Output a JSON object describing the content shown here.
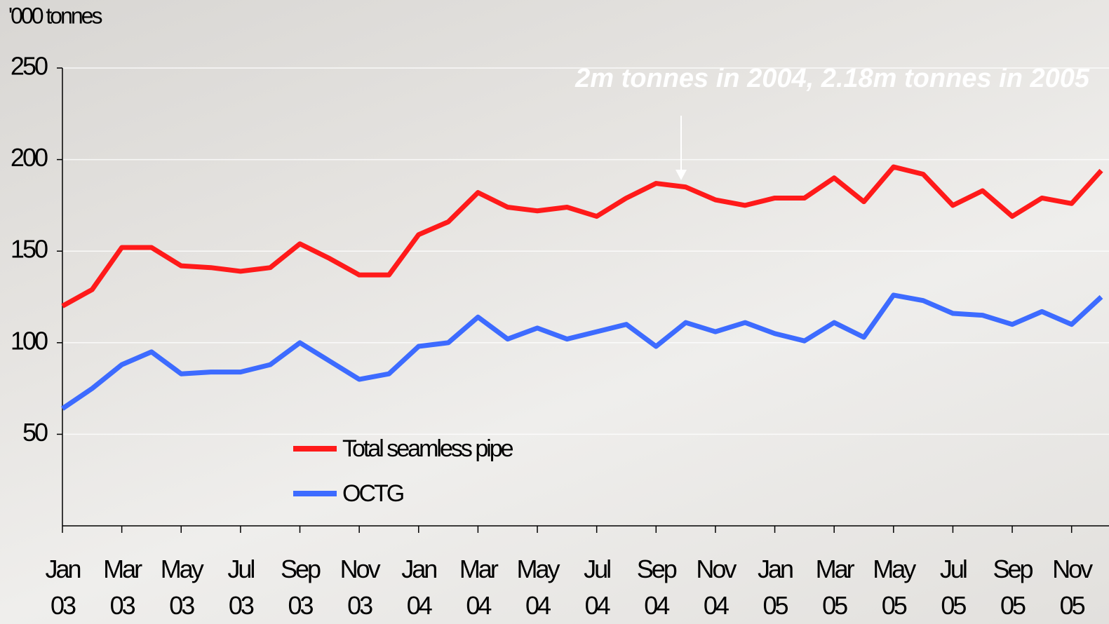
{
  "chart_data": {
    "type": "line",
    "y_axis_title": "'000 tonnes",
    "annotation": "2m tonnes in 2004, 2.18m tonnes in 2005",
    "categories": [
      "Jan\n03",
      null,
      "Mar\n03",
      null,
      "May\n03",
      null,
      "Jul\n03",
      null,
      "Sep\n03",
      null,
      "Nov\n03",
      null,
      "Jan\n04",
      null,
      "Mar\n04",
      null,
      "May\n04",
      null,
      "Jul\n04",
      null,
      "Sep\n04",
      null,
      "Nov\n04",
      null,
      "Jan\n05",
      null,
      "Mar\n05",
      null,
      "May\n05",
      null,
      "Jul\n05",
      null,
      "Sep\n05",
      null,
      "Nov\n05",
      null
    ],
    "series": [
      {
        "name": "Total seamless pipe",
        "color": "#ff1a1a",
        "values": [
          120,
          129,
          152,
          152,
          142,
          141,
          139,
          141,
          154,
          146,
          137,
          137,
          159,
          166,
          182,
          174,
          172,
          174,
          169,
          179,
          187,
          185,
          178,
          175,
          179,
          179,
          190,
          177,
          196,
          192,
          175,
          183,
          169,
          179,
          176,
          194
        ]
      },
      {
        "name": "OCTG",
        "color": "#3d6bff",
        "values": [
          64,
          75,
          88,
          95,
          83,
          84,
          84,
          88,
          100,
          90,
          80,
          83,
          98,
          100,
          114,
          102,
          108,
          102,
          106,
          110,
          98,
          111,
          106,
          111,
          105,
          101,
          111,
          103,
          126,
          123,
          116,
          115,
          110,
          117,
          110,
          125
        ]
      }
    ],
    "ylim": [
      0,
      250
    ],
    "yticks": [
      50,
      100,
      150,
      200,
      250
    ],
    "grid": true,
    "legend": "lower-left"
  }
}
